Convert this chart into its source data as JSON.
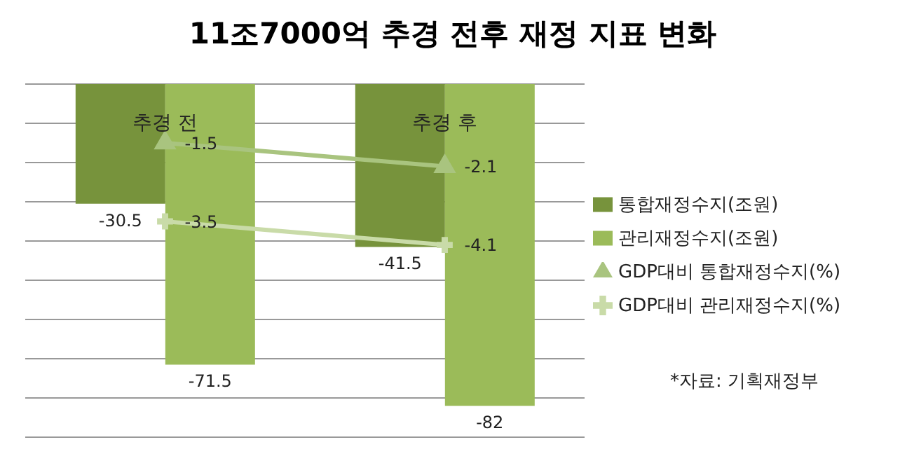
{
  "chart_data": {
    "type": "bar",
    "title": "11조7000억 추경 전후 재정 지표 변화",
    "categories": [
      "추경 전",
      "추경 후"
    ],
    "series": [
      {
        "name": "통합재정수지(조원)",
        "color": "#77933c",
        "values": [
          -30.5,
          -41.5
        ]
      },
      {
        "name": "관리재정수지(조원)",
        "color": "#9bbb59",
        "values": [
          -71.5,
          -82
        ]
      },
      {
        "name": "GDP대비 통합재정수지(%)",
        "type": "line",
        "axis": "y2",
        "marker": "triangle",
        "color": "#a9c47f",
        "values": [
          -1.5,
          -2.1
        ]
      },
      {
        "name": "GDP대비 관리재정수지(%)",
        "type": "line",
        "axis": "y2",
        "marker": "cross",
        "color": "#c9dba8",
        "values": [
          -3.5,
          -4.1
        ]
      }
    ],
    "data_labels": true,
    "grid": "y",
    "legend": "right",
    "tick_labels": false,
    "annotations": [
      "*자료: 기획재정부"
    ]
  }
}
